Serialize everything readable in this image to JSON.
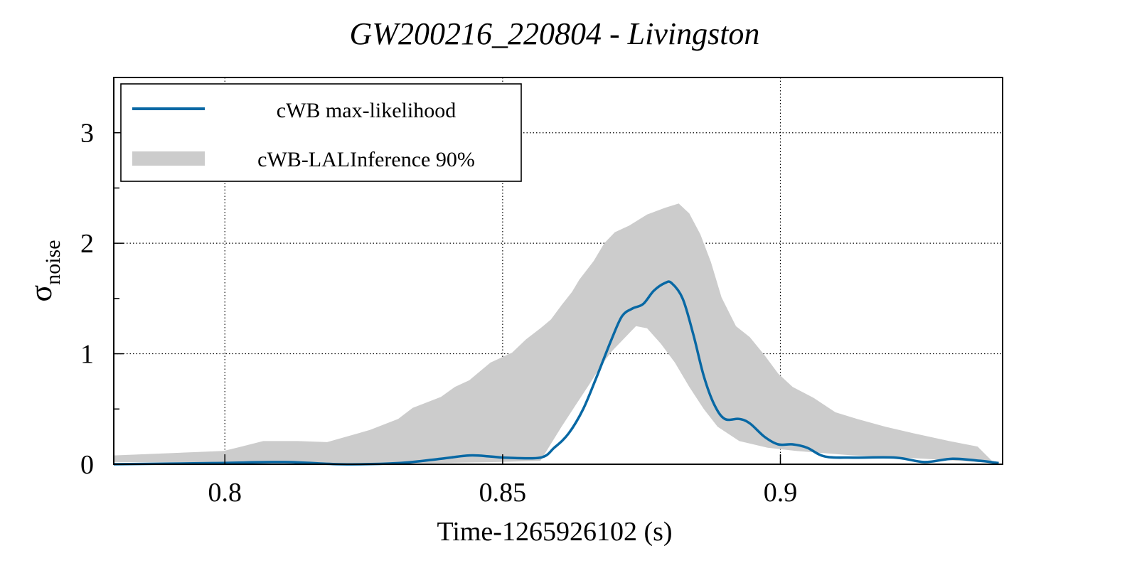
{
  "chart_data": {
    "type": "line",
    "title": "GW200216_220804 - Livingston",
    "xlabel": "Time-1265926102 (s)",
    "ylabel": "σ",
    "ylabel_subscript": "noise",
    "xlim": [
      0.78,
      0.94
    ],
    "ylim": [
      0,
      3.5
    ],
    "grid": true,
    "legend_position": "top-left",
    "x_ticks": [
      {
        "value": 0.8,
        "label": "0.8"
      },
      {
        "value": 0.85,
        "label": "0.85"
      },
      {
        "value": 0.9,
        "label": "0.9"
      }
    ],
    "y_ticks": [
      {
        "value": 0,
        "label": "0"
      },
      {
        "value": 1,
        "label": "1"
      },
      {
        "value": 2,
        "label": "2"
      },
      {
        "value": 3,
        "label": "3"
      }
    ],
    "y_minor_ticks": [
      0.5,
      1.5,
      2.5
    ],
    "series": [
      {
        "name": "cWB max-likelihood",
        "kind": "line",
        "color": "#0868a4",
        "x": [
          0.78,
          0.7979,
          0.8107,
          0.8209,
          0.8312,
          0.8389,
          0.844,
          0.8478,
          0.8504,
          0.8568,
          0.8593,
          0.8619,
          0.8645,
          0.867,
          0.8696,
          0.8715,
          0.8734,
          0.8753,
          0.8772,
          0.8792,
          0.8804,
          0.8824,
          0.8843,
          0.8862,
          0.8881,
          0.89,
          0.8926,
          0.8945,
          0.8971,
          0.8996,
          0.9022,
          0.9048,
          0.908,
          0.9131,
          0.9208,
          0.9259,
          0.931,
          0.9361,
          0.9393
        ],
        "y": [
          0.0,
          0.01,
          0.02,
          0.0,
          0.01,
          0.05,
          0.08,
          0.07,
          0.06,
          0.06,
          0.15,
          0.28,
          0.5,
          0.8,
          1.13,
          1.34,
          1.41,
          1.45,
          1.57,
          1.64,
          1.64,
          1.5,
          1.18,
          0.8,
          0.54,
          0.41,
          0.41,
          0.37,
          0.25,
          0.18,
          0.18,
          0.15,
          0.07,
          0.06,
          0.06,
          0.02,
          0.05,
          0.03,
          0.01
        ]
      },
      {
        "name": "cWB-LALInference 90%",
        "kind": "band",
        "color": "#cccccc",
        "x_upper": [
          0.78,
          0.7998,
          0.803,
          0.8069,
          0.8132,
          0.8184,
          0.8261,
          0.8312,
          0.8338,
          0.8389,
          0.8414,
          0.844,
          0.8478,
          0.8517,
          0.8542,
          0.8568,
          0.8587,
          0.8606,
          0.8625,
          0.8638,
          0.8664,
          0.8683,
          0.8702,
          0.8728,
          0.876,
          0.8792,
          0.8817,
          0.8836,
          0.8856,
          0.8875,
          0.8894,
          0.892,
          0.8945,
          0.8971,
          0.8996,
          0.9022,
          0.906,
          0.9099,
          0.9138,
          0.9189,
          0.924,
          0.9304,
          0.9355,
          0.9387
        ],
        "y_upper": [
          0.08,
          0.12,
          0.16,
          0.21,
          0.21,
          0.2,
          0.31,
          0.41,
          0.51,
          0.61,
          0.7,
          0.76,
          0.92,
          1.01,
          1.13,
          1.23,
          1.31,
          1.44,
          1.56,
          1.67,
          1.84,
          2.0,
          2.1,
          2.16,
          2.26,
          2.32,
          2.36,
          2.27,
          2.08,
          1.83,
          1.51,
          1.25,
          1.15,
          0.99,
          0.82,
          0.7,
          0.6,
          0.47,
          0.41,
          0.34,
          0.28,
          0.21,
          0.16,
          0.0
        ],
        "x_lower": [
          0.78,
          0.8363,
          0.8491,
          0.8568,
          0.8606,
          0.8632,
          0.8657,
          0.8677,
          0.8696,
          0.8721,
          0.874,
          0.876,
          0.8785,
          0.881,
          0.8836,
          0.8862,
          0.8887,
          0.8926,
          0.8977,
          0.9028,
          0.9131,
          0.9259,
          0.9387
        ],
        "y_lower": [
          0.02,
          0.01,
          0.02,
          0.03,
          0.34,
          0.54,
          0.73,
          0.89,
          1.02,
          1.15,
          1.25,
          1.23,
          1.09,
          0.92,
          0.7,
          0.5,
          0.34,
          0.21,
          0.15,
          0.12,
          0.08,
          0.05,
          0.01
        ]
      }
    ]
  },
  "legend": {
    "items": [
      {
        "label": "cWB max-likelihood",
        "swatch": "line",
        "color": "#0868a4"
      },
      {
        "label": "cWB-LALInference 90%",
        "swatch": "band",
        "color": "#cccccc"
      }
    ]
  }
}
